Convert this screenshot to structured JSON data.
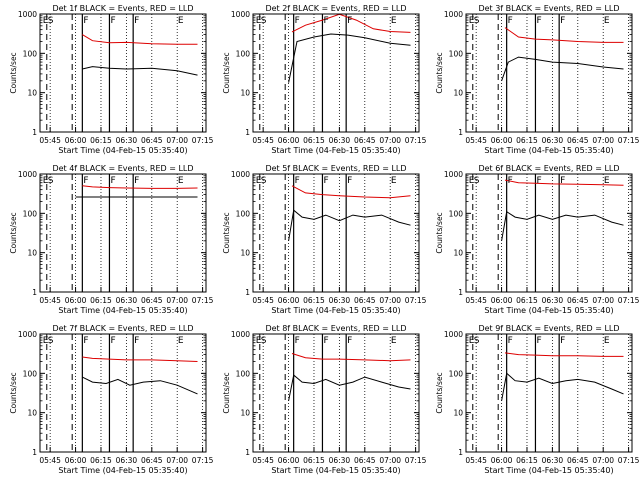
{
  "figure": {
    "xlabel": "Start Time (04-Feb-15 05:35:40)",
    "ylabel": "Counts/sec",
    "x_ticks": [
      "05:45",
      "06:00",
      "06:15",
      "06:30",
      "06:45",
      "07:00",
      "07:15"
    ],
    "y_ticks": [
      "1",
      "10",
      "100",
      "1000"
    ],
    "colors": {
      "events": "#000000",
      "lld": "#dd0000",
      "axes": "#000000",
      "background": "#ffffff"
    }
  },
  "chart_data": [
    {
      "type": "line",
      "title": "Det 1f BLACK = Events, RED = LLD",
      "xlabel": "Start Time (04-Feb-15 05:35:40)",
      "ylabel": "Counts/sec",
      "xlim": [
        "05:39",
        "07:17"
      ],
      "ylim": [
        1,
        1000
      ],
      "y_scale": "log",
      "region_labels": [
        "E",
        "S",
        "F",
        "F",
        "F",
        "E"
      ],
      "solid_markers": [
        "06:04",
        "06:20",
        "06:34"
      ],
      "dashed_markers": [
        "05:43",
        "05:58"
      ],
      "series": [
        {
          "name": "LLD",
          "color": "#dd0000",
          "x": [
            "06:04",
            "06:10",
            "06:20",
            "06:30",
            "06:45",
            "07:00",
            "07:12"
          ],
          "values": [
            300,
            210,
            185,
            190,
            175,
            170,
            170
          ]
        },
        {
          "name": "Events",
          "color": "#000000",
          "x": [
            "06:04",
            "06:10",
            "06:20",
            "06:30",
            "06:45",
            "07:00",
            "07:12"
          ],
          "values": [
            40,
            46,
            42,
            40,
            42,
            36,
            28
          ]
        }
      ]
    },
    {
      "type": "line",
      "title": "Det 2f BLACK = Events, RED = LLD",
      "xlabel": "Start Time (04-Feb-15 05:35:40)",
      "ylabel": "Counts/sec",
      "xlim": [
        "05:39",
        "07:17"
      ],
      "ylim": [
        1,
        1000
      ],
      "y_scale": "log",
      "region_labels": [
        "E",
        "S",
        "F",
        "F",
        "F",
        "E"
      ],
      "solid_markers": [
        "06:03",
        "06:20",
        "06:34"
      ],
      "dashed_markers": [
        "05:43",
        "05:58"
      ],
      "series": [
        {
          "name": "LLD",
          "color": "#dd0000",
          "x": [
            "06:02",
            "06:10",
            "06:20",
            "06:30",
            "06:40",
            "06:50",
            "07:00",
            "07:12"
          ],
          "values": [
            350,
            520,
            700,
            980,
            700,
            420,
            360,
            340
          ]
        },
        {
          "name": "Events",
          "color": "#000000",
          "x": [
            "06:00",
            "06:05",
            "06:15",
            "06:25",
            "06:35",
            "06:45",
            "07:00",
            "07:12"
          ],
          "values": [
            18,
            200,
            260,
            310,
            290,
            250,
            180,
            160
          ]
        }
      ]
    },
    {
      "type": "line",
      "title": "Det 3f BLACK = Events, RED = LLD",
      "xlabel": "Start Time (04-Feb-15 05:35:40)",
      "ylabel": "Counts/sec",
      "xlim": [
        "05:39",
        "07:17"
      ],
      "ylim": [
        1,
        1000
      ],
      "y_scale": "log",
      "region_labels": [
        "E",
        "S",
        "F",
        "F",
        "F",
        "E"
      ],
      "solid_markers": [
        "06:03",
        "06:20",
        "06:34"
      ],
      "dashed_markers": [
        "05:43",
        "05:58"
      ],
      "series": [
        {
          "name": "LLD",
          "color": "#dd0000",
          "x": [
            "06:02",
            "06:10",
            "06:20",
            "06:30",
            "06:45",
            "07:00",
            "07:12"
          ],
          "values": [
            450,
            260,
            230,
            220,
            200,
            190,
            190
          ]
        },
        {
          "name": "Events",
          "color": "#000000",
          "x": [
            "06:00",
            "06:04",
            "06:10",
            "06:20",
            "06:30",
            "06:45",
            "07:00",
            "07:12"
          ],
          "values": [
            20,
            60,
            80,
            70,
            60,
            55,
            45,
            40
          ]
        }
      ]
    },
    {
      "type": "line",
      "title": "Det 4f BLACK = Events, RED = LLD",
      "xlabel": "Start Time (04-Feb-15 05:35:40)",
      "ylabel": "Counts/sec",
      "xlim": [
        "05:39",
        "07:17"
      ],
      "ylim": [
        1,
        1000
      ],
      "y_scale": "log",
      "region_labels": [
        "E",
        "S",
        "F",
        "F",
        "F",
        "E"
      ],
      "solid_markers": [
        "06:04",
        "06:20",
        "06:34"
      ],
      "dashed_markers": [
        "05:43",
        "05:58"
      ],
      "series": [
        {
          "name": "LLD",
          "color": "#dd0000",
          "x": [
            "06:04",
            "06:10",
            "06:20",
            "06:30",
            "06:45",
            "07:00",
            "07:12"
          ],
          "values": [
            500,
            470,
            450,
            440,
            430,
            430,
            440
          ]
        },
        {
          "name": "Events",
          "color": "#000000",
          "x": [
            "06:00",
            "06:04",
            "06:20",
            "06:40",
            "07:00",
            "07:12"
          ],
          "values": [
            260,
            260,
            260,
            260,
            260,
            260
          ]
        }
      ]
    },
    {
      "type": "line",
      "title": "Det 5f BLACK = Events, RED = LLD",
      "xlabel": "Start Time (04-Feb-15 05:35:40)",
      "ylabel": "Counts/sec",
      "xlim": [
        "05:39",
        "07:17"
      ],
      "ylim": [
        1,
        1000
      ],
      "y_scale": "log",
      "region_labels": [
        "E",
        "S",
        "F",
        "F",
        "F",
        "E"
      ],
      "solid_markers": [
        "06:03",
        "06:20",
        "06:34"
      ],
      "dashed_markers": [
        "05:43",
        "05:58"
      ],
      "series": [
        {
          "name": "LLD",
          "color": "#dd0000",
          "x": [
            "06:02",
            "06:10",
            "06:20",
            "06:30",
            "06:45",
            "07:00",
            "07:12"
          ],
          "values": [
            500,
            330,
            300,
            280,
            260,
            250,
            280
          ]
        },
        {
          "name": "Events",
          "color": "#000000",
          "x": [
            "06:00",
            "06:03",
            "06:08",
            "06:15",
            "06:22",
            "06:30",
            "06:38",
            "06:45",
            "06:55",
            "07:05",
            "07:12"
          ],
          "values": [
            20,
            120,
            80,
            70,
            90,
            65,
            90,
            80,
            90,
            60,
            50
          ]
        }
      ]
    },
    {
      "type": "line",
      "title": "Det 6f BLACK = Events, RED = LLD",
      "xlabel": "Start Time (04-Feb-15 05:35:40)",
      "ylabel": "Counts/sec",
      "xlim": [
        "05:39",
        "07:17"
      ],
      "ylim": [
        1,
        1000
      ],
      "y_scale": "log",
      "region_labels": [
        "E",
        "S",
        "F",
        "F",
        "F",
        "E"
      ],
      "solid_markers": [
        "06:03",
        "06:20",
        "06:34"
      ],
      "dashed_markers": [
        "05:43",
        "05:58"
      ],
      "series": [
        {
          "name": "LLD",
          "color": "#dd0000",
          "x": [
            "06:02",
            "06:10",
            "06:20",
            "06:30",
            "06:45",
            "07:00",
            "07:12"
          ],
          "values": [
            700,
            600,
            580,
            560,
            550,
            530,
            520
          ]
        },
        {
          "name": "Events",
          "color": "#000000",
          "x": [
            "06:00",
            "06:03",
            "06:08",
            "06:15",
            "06:22",
            "06:30",
            "06:38",
            "06:45",
            "06:55",
            "07:05",
            "07:12"
          ],
          "values": [
            20,
            110,
            80,
            70,
            90,
            70,
            90,
            80,
            90,
            60,
            50
          ]
        }
      ]
    },
    {
      "type": "line",
      "title": "Det 7f BLACK = Events, RED = LLD",
      "xlabel": "Start Time (04-Feb-15 05:35:40)",
      "ylabel": "Counts/sec",
      "xlim": [
        "05:39",
        "07:17"
      ],
      "ylim": [
        1,
        1000
      ],
      "y_scale": "log",
      "region_labels": [
        "E",
        "S",
        "F",
        "F",
        "F",
        "E"
      ],
      "solid_markers": [
        "06:04",
        "06:20",
        "06:34"
      ],
      "dashed_markers": [
        "05:43",
        "05:58"
      ],
      "series": [
        {
          "name": "LLD",
          "color": "#dd0000",
          "x": [
            "06:04",
            "06:10",
            "06:20",
            "06:30",
            "06:45",
            "07:00",
            "07:12"
          ],
          "values": [
            260,
            240,
            230,
            220,
            220,
            210,
            200
          ]
        },
        {
          "name": "Events",
          "color": "#000000",
          "x": [
            "06:04",
            "06:10",
            "06:18",
            "06:25",
            "06:32",
            "06:40",
            "06:50",
            "07:00",
            "07:12"
          ],
          "values": [
            80,
            60,
            55,
            70,
            50,
            60,
            65,
            50,
            30
          ]
        }
      ]
    },
    {
      "type": "line",
      "title": "Det 8f BLACK = Events, RED = LLD",
      "xlabel": "Start Time (04-Feb-15 05:35:40)",
      "ylabel": "Counts/sec",
      "xlim": [
        "05:39",
        "07:17"
      ],
      "ylim": [
        1,
        1000
      ],
      "y_scale": "log",
      "region_labels": [
        "E",
        "S",
        "F",
        "F",
        "F",
        "E"
      ],
      "solid_markers": [
        "06:03",
        "06:20",
        "06:34"
      ],
      "dashed_markers": [
        "05:43",
        "05:58"
      ],
      "series": [
        {
          "name": "LLD",
          "color": "#dd0000",
          "x": [
            "06:02",
            "06:10",
            "06:20",
            "06:30",
            "06:45",
            "07:00",
            "07:12"
          ],
          "values": [
            320,
            250,
            230,
            230,
            220,
            210,
            220
          ]
        },
        {
          "name": "Events",
          "color": "#000000",
          "x": [
            "06:00",
            "06:03",
            "06:08",
            "06:15",
            "06:22",
            "06:30",
            "06:38",
            "06:45",
            "06:55",
            "07:05",
            "07:12"
          ],
          "values": [
            20,
            90,
            60,
            55,
            70,
            50,
            60,
            80,
            60,
            45,
            40
          ]
        }
      ]
    },
    {
      "type": "line",
      "title": "Det 9f BLACK = Events, RED = LLD",
      "xlabel": "Start Time (04-Feb-15 05:35:40)",
      "ylabel": "Counts/sec",
      "xlim": [
        "05:39",
        "07:17"
      ],
      "ylim": [
        1,
        1000
      ],
      "y_scale": "log",
      "region_labels": [
        "E",
        "S",
        "F",
        "F",
        "F",
        "E"
      ],
      "solid_markers": [
        "06:03",
        "06:20",
        "06:34"
      ],
      "dashed_markers": [
        "05:43",
        "05:58"
      ],
      "series": [
        {
          "name": "LLD",
          "color": "#dd0000",
          "x": [
            "06:02",
            "06:10",
            "06:20",
            "06:30",
            "06:45",
            "07:00",
            "07:12"
          ],
          "values": [
            330,
            300,
            290,
            280,
            280,
            270,
            270
          ]
        },
        {
          "name": "Events",
          "color": "#000000",
          "x": [
            "06:00",
            "06:03",
            "06:08",
            "06:15",
            "06:22",
            "06:30",
            "06:38",
            "06:45",
            "06:55",
            "07:05",
            "07:12"
          ],
          "values": [
            20,
            100,
            65,
            60,
            75,
            55,
            65,
            70,
            60,
            40,
            30
          ]
        }
      ]
    }
  ]
}
